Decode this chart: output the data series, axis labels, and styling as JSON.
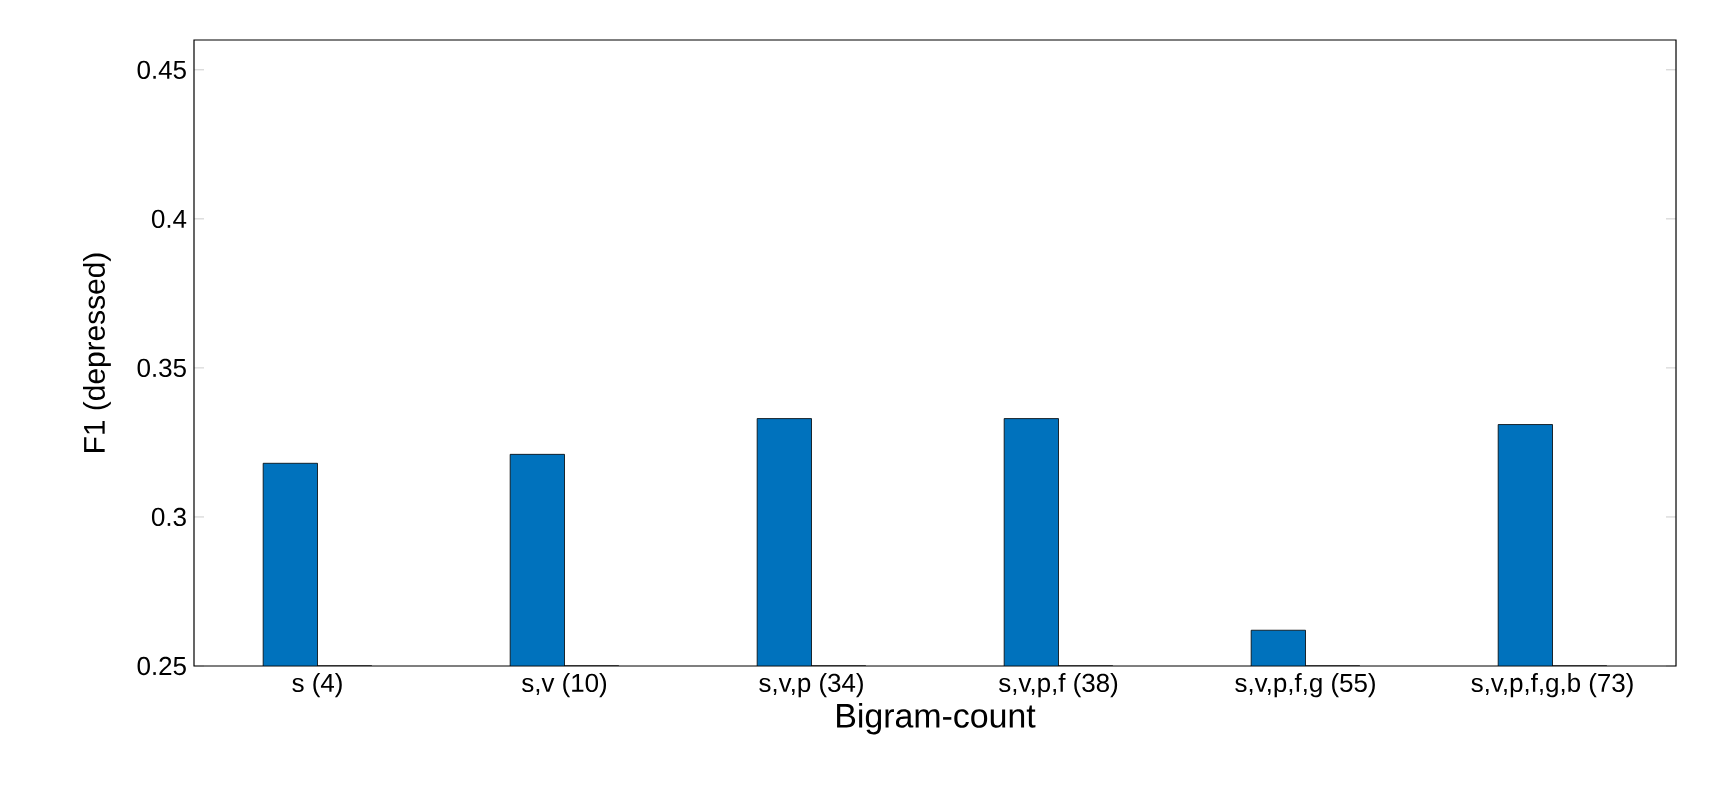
{
  "chart_data": {
    "type": "bar",
    "xlabel": "Bigram-count",
    "ylabel": "F1 (depressed)",
    "categories": [
      "s (4)",
      "s,v (10)",
      "s,v,p (34)",
      "s,v,p,f (38)",
      "s,v,p,f,g (55)",
      "s,v,p,f,g,b (73)"
    ],
    "series": [
      {
        "color": "#0072bd",
        "values": [
          0.318,
          0.321,
          0.333,
          0.333,
          0.262,
          0.331
        ]
      },
      {
        "values": [
          0.25,
          0.25,
          0.25,
          0.25,
          0.25,
          0.25
        ]
      }
    ],
    "ylim": [
      0.25,
      0.46
    ],
    "yticks": [
      0.25,
      0.3,
      0.35,
      0.4,
      0.45
    ]
  }
}
